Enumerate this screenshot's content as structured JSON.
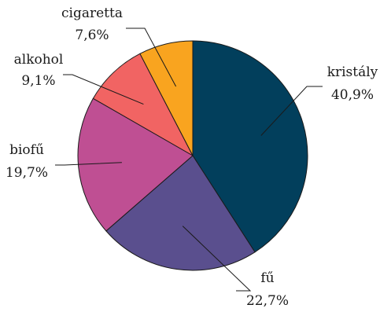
{
  "chart_data": {
    "type": "pie",
    "slices": [
      {
        "label": "kristály",
        "value": 40.9,
        "display": "40,9%",
        "color": "#023f5c"
      },
      {
        "label": "fű",
        "value": 22.7,
        "display": "22,7%",
        "color": "#5a4f8e"
      },
      {
        "label": "biofű",
        "value": 19.7,
        "display": "19,7%",
        "color": "#bf4f93"
      },
      {
        "label": "alkohol",
        "value": 9.1,
        "display": "9,1%",
        "color": "#f16463"
      },
      {
        "label": "cigaretta",
        "value": 7.6,
        "display": "7,6%",
        "color": "#f9a41f"
      }
    ],
    "start_angle_deg": 0,
    "direction": "clockwise",
    "legend": "none",
    "labels": "outside-with-leader-lines"
  }
}
